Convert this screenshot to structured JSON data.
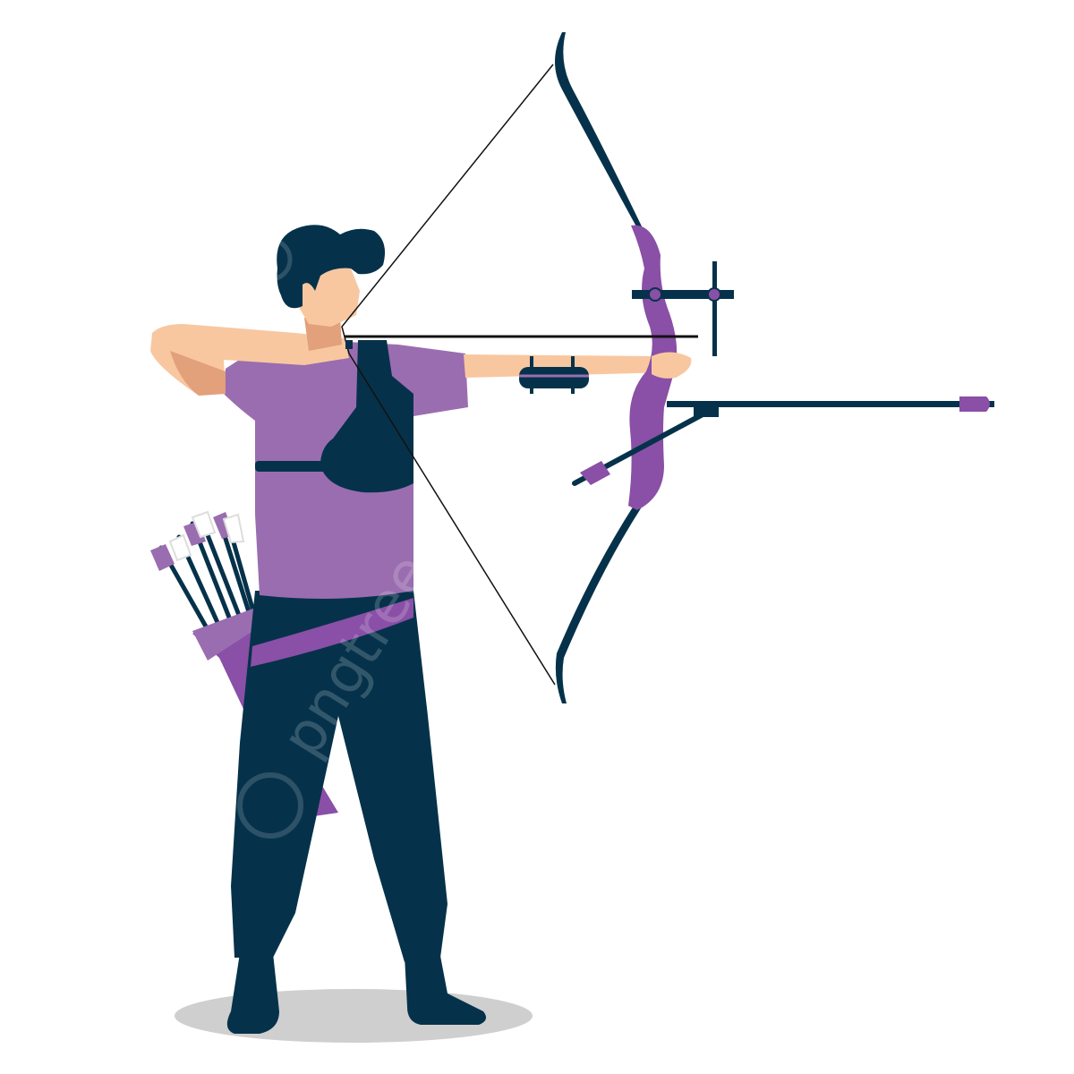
{
  "scene": {
    "subject": "archer-drawing-recurve-bow",
    "colors": {
      "background": "#ffffff",
      "navy": "#05324a",
      "purple": "#9a6db0",
      "purple_dark": "#8a4fa6",
      "skin": "#f8c7a0",
      "skin_shadow": "#e2a07b",
      "shadow": "#cfcfcf",
      "string": "#111111"
    }
  },
  "watermark": {
    "text": "pngtree"
  },
  "icons": [
    "archer-figure",
    "recurve-bow",
    "quiver",
    "arrow"
  ]
}
